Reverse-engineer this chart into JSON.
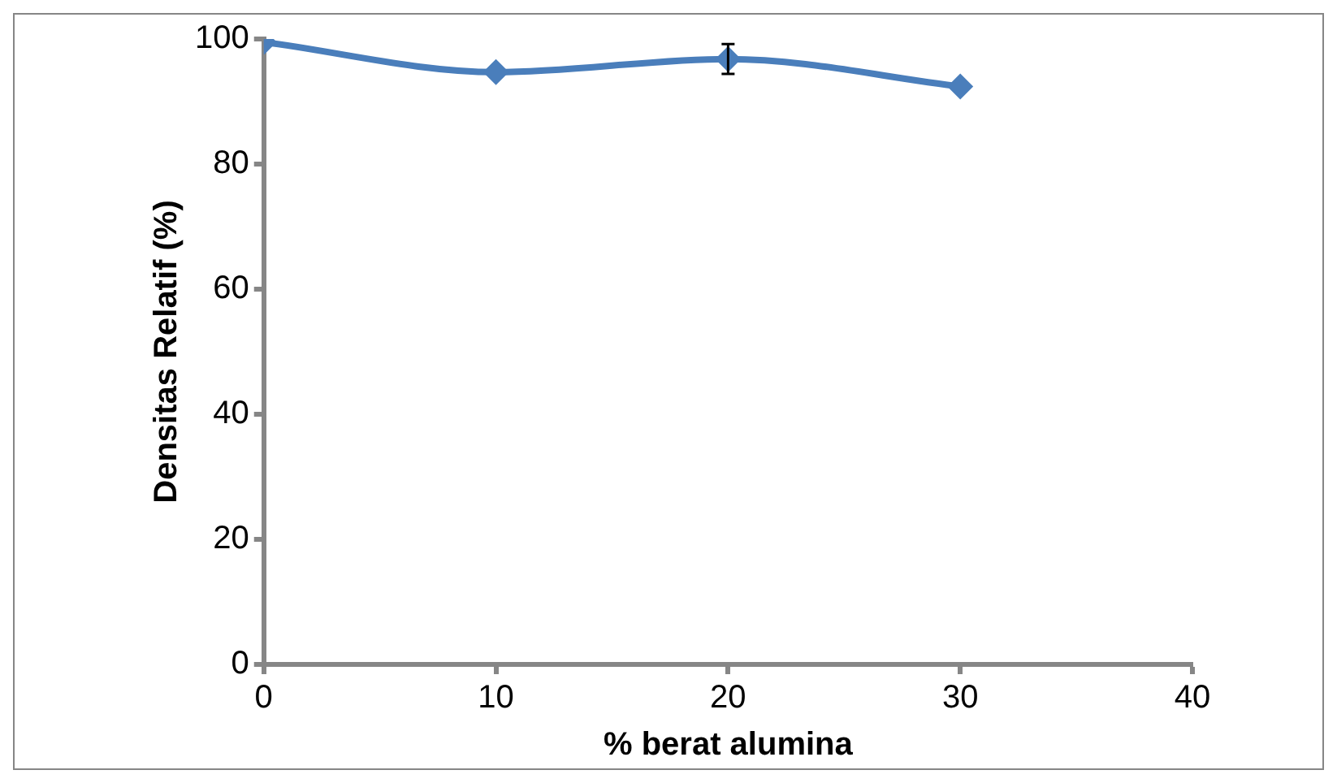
{
  "chart_data": {
    "type": "line",
    "xlabel": "% berat alumina",
    "ylabel": "Densitas Relatif (%)",
    "x": [
      0,
      10,
      20,
      30
    ],
    "series": [
      {
        "color": "#4a7ebb",
        "values": [
          99.5,
          94.7,
          96.8,
          92.4
        ],
        "errors": [
          null,
          null,
          2.4,
          null
        ]
      }
    ],
    "xlim": [
      0,
      40
    ],
    "xticks": [
      0,
      10,
      20,
      30,
      40
    ],
    "ylim": [
      0,
      100
    ],
    "yticks": [
      0,
      20,
      40,
      60,
      80,
      100
    ],
    "grid": false,
    "legend": false,
    "marker": "diamond",
    "line_style": "solid"
  }
}
